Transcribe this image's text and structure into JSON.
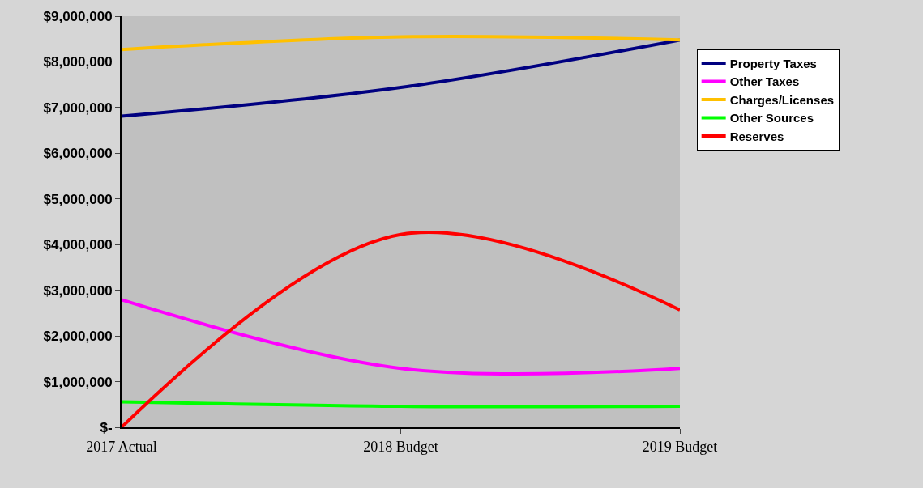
{
  "chart_data": {
    "type": "line",
    "categories": [
      "2017 Actual",
      "2018 Budget",
      "2019 Budget"
    ],
    "series": [
      {
        "name": "Property Taxes",
        "color": "#000080",
        "values": [
          6810000,
          7440000,
          8480000
        ]
      },
      {
        "name": "Other Taxes",
        "color": "#ff00ff",
        "values": [
          2790000,
          1290000,
          1290000
        ]
      },
      {
        "name": "Charges/Licenses",
        "color": "#ffc000",
        "values": [
          8270000,
          8550000,
          8480000
        ]
      },
      {
        "name": "Other Sources",
        "color": "#00ff00",
        "values": [
          560000,
          460000,
          460000
        ]
      },
      {
        "name": "Reserves",
        "color": "#ff0000",
        "values": [
          0,
          4220000,
          2570000
        ]
      }
    ],
    "ylim": [
      0,
      9000000
    ],
    "yticks": [
      {
        "value": 0,
        "label": "$-"
      },
      {
        "value": 1000000,
        "label": "$1,000,000"
      },
      {
        "value": 2000000,
        "label": "$2,000,000"
      },
      {
        "value": 3000000,
        "label": "$3,000,000"
      },
      {
        "value": 4000000,
        "label": "$4,000,000"
      },
      {
        "value": 5000000,
        "label": "$5,000,000"
      },
      {
        "value": 6000000,
        "label": "$6,000,000"
      },
      {
        "value": 7000000,
        "label": "$7,000,000"
      },
      {
        "value": 8000000,
        "label": "$8,000,000"
      },
      {
        "value": 9000000,
        "label": "$9,000,000"
      }
    ],
    "grid": false,
    "legend": "right",
    "marker": "none",
    "line_style": "solid"
  }
}
